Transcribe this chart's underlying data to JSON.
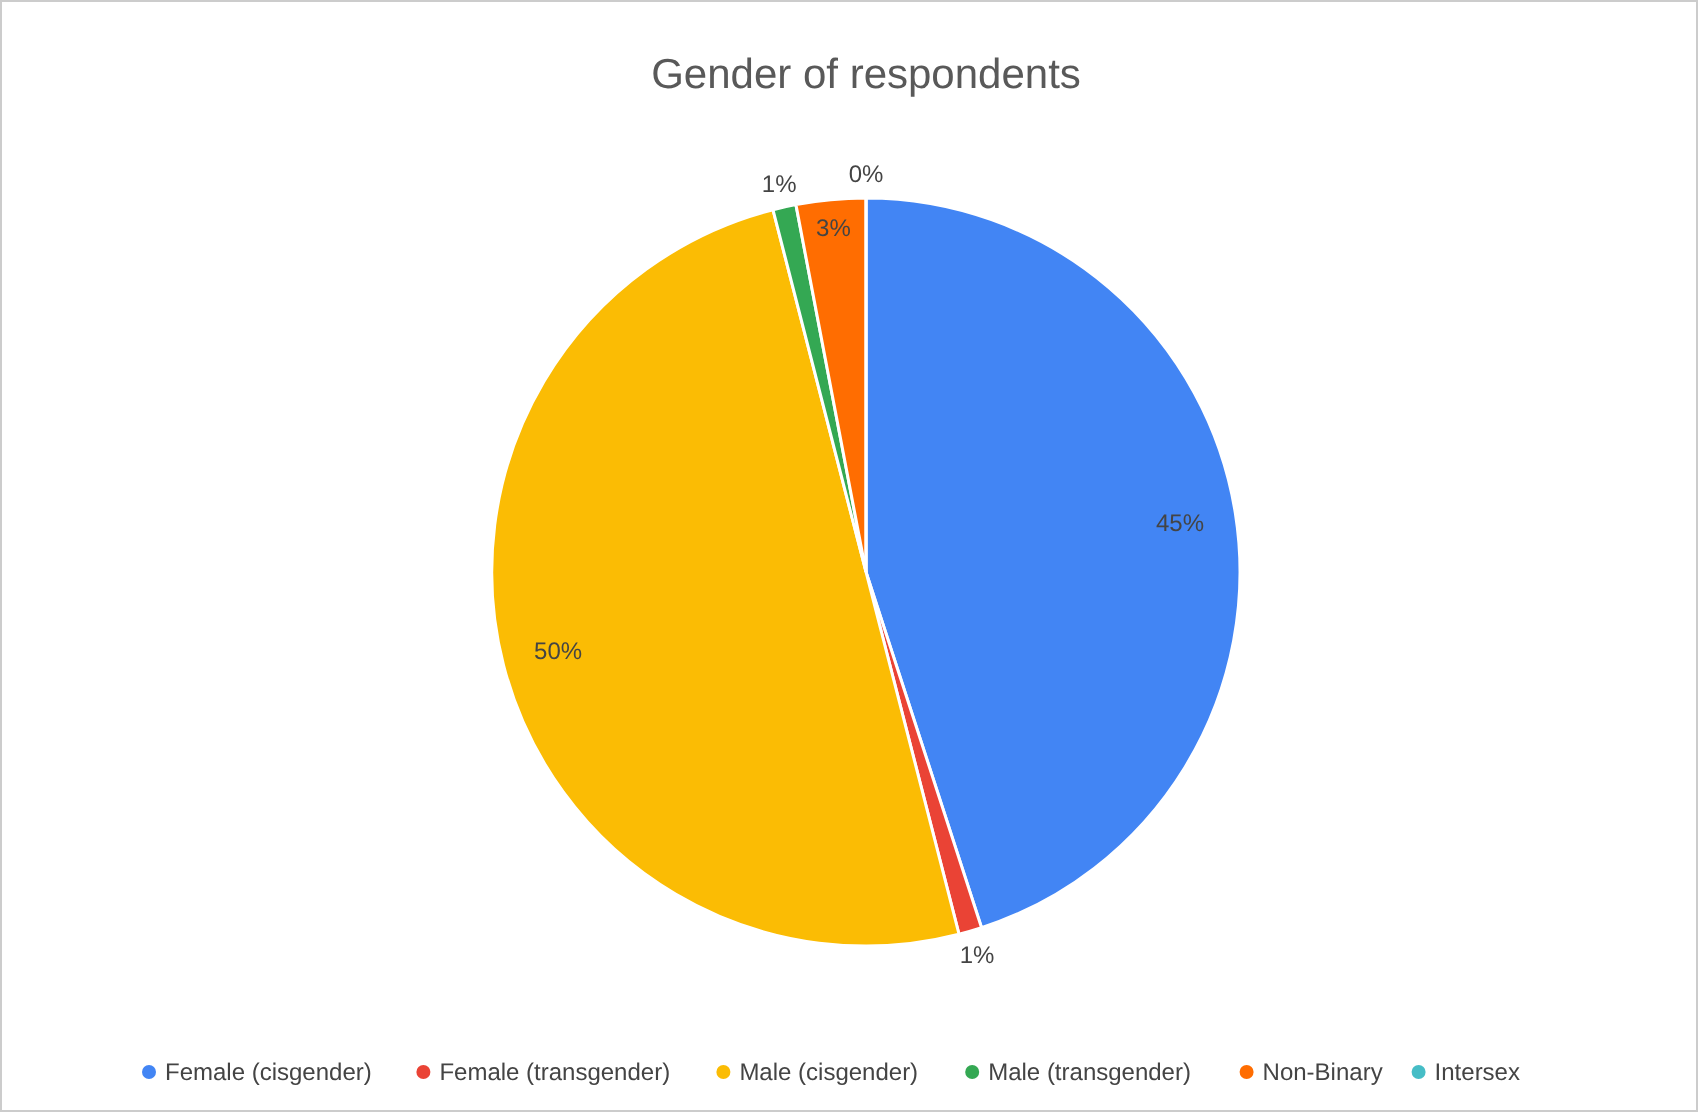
{
  "chart_data": {
    "type": "pie",
    "title": "Gender of respondents",
    "categories": [
      "Female (cisgender)",
      "Female (transgender)",
      "Male (cisgender)",
      "Male (transgender)",
      "Non-Binary",
      "Intersex"
    ],
    "values": [
      45,
      1,
      50,
      1,
      3,
      0
    ],
    "colors": [
      "#4285f4",
      "#ea4335",
      "#fbbc04",
      "#34a853",
      "#ff6d01",
      "#46bdc6"
    ],
    "value_labels": [
      "45%",
      "1%",
      "50%",
      "1%",
      "3%",
      "0%"
    ],
    "legend": "bottom"
  }
}
